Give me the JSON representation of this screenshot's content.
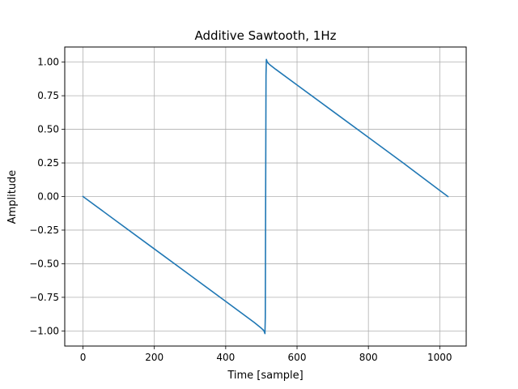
{
  "chart_data": {
    "type": "line",
    "title": "Additive Sawtooth, 1Hz",
    "xlabel": "Time [sample]",
    "ylabel": "Amplitude",
    "xlim": [
      -51.15,
      1074.15
    ],
    "ylim": [
      -1.1125,
      1.1125
    ],
    "xticks": [
      0,
      200,
      400,
      600,
      800,
      1000
    ],
    "yticks": [
      -1.0,
      -0.75,
      -0.5,
      -0.25,
      0.0,
      0.25,
      0.5,
      0.75,
      1.0
    ],
    "xtick_labels": [
      "0",
      "200",
      "400",
      "600",
      "800",
      "1000"
    ],
    "ytick_labels": [
      "−1.00",
      "−0.75",
      "−0.50",
      "−0.25",
      "0.00",
      "0.25",
      "0.50",
      "0.75",
      "1.00"
    ],
    "grid": true,
    "legend": false,
    "series": [
      {
        "color": "#1f77b4",
        "x": [
          0,
          100,
          200,
          300,
          400,
          480,
          500,
          506,
          508,
          510,
          511,
          512,
          513,
          514,
          516,
          518,
          524,
          540,
          600,
          700,
          800,
          900,
          1000,
          1023
        ],
        "y": [
          0.0,
          -0.195,
          -0.39,
          -0.585,
          -0.78,
          -0.937,
          -0.98,
          -0.995,
          -1.005,
          -1.02,
          -0.9,
          0.0,
          0.9,
          1.02,
          1.005,
          0.995,
          0.98,
          0.947,
          0.83,
          0.635,
          0.44,
          0.245,
          0.045,
          0.0
        ]
      }
    ]
  },
  "colors": {
    "line": "#1f77b4",
    "grid": "#b0b0b0",
    "axes": "#000000",
    "background": "#ffffff"
  }
}
